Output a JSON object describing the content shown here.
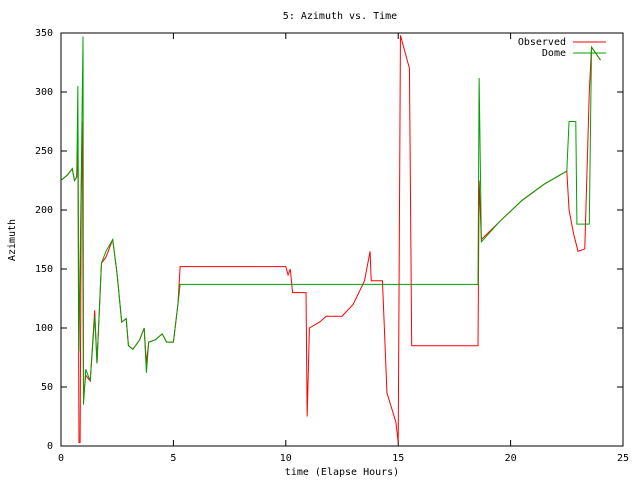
{
  "chart_data": {
    "type": "line",
    "title": "5: Azimuth vs. Time",
    "x_label": "time (Elapse Hours)",
    "y_label": "Azimuth",
    "xlim": [
      0,
      25
    ],
    "ylim": [
      0,
      350
    ],
    "xticks": [
      0,
      5,
      10,
      15,
      20,
      25
    ],
    "yticks": [
      0,
      50,
      100,
      150,
      200,
      250,
      300,
      350
    ],
    "grid": false,
    "legend": "top-right",
    "series": [
      {
        "name": "Observed",
        "color": "#ff0000",
        "x": [
          0,
          0.3,
          0.5,
          0.6,
          0.7,
          0.75,
          0.8,
          0.85,
          0.9,
          0.95,
          1.0,
          1.1,
          1.3,
          1.5,
          1.6,
          1.8,
          2.0,
          2.3,
          2.5,
          2.7,
          2.9,
          3.0,
          3.2,
          3.5,
          3.7,
          3.8,
          3.9,
          4.2,
          4.5,
          4.7,
          5.0,
          5.2,
          5.3,
          10.0,
          10.1,
          10.2,
          10.3,
          10.9,
          10.95,
          11.05,
          11.5,
          11.8,
          12.5,
          13.0,
          13.5,
          13.75,
          13.8,
          14.3,
          14.5,
          14.9,
          15.0,
          15.1,
          15.5,
          15.6,
          18.55,
          18.6,
          18.7,
          19.5,
          20.5,
          21.5,
          22.5,
          22.6,
          22.8,
          23.0,
          23.3,
          23.5,
          23.6,
          24.0
        ],
        "values": [
          225,
          230,
          235,
          225,
          228,
          258,
          3,
          3,
          210,
          275,
          40,
          60,
          55,
          115,
          70,
          155,
          160,
          175,
          145,
          105,
          108,
          85,
          82,
          90,
          100,
          70,
          88,
          90,
          95,
          88,
          88,
          120,
          152,
          152,
          145,
          150,
          130,
          130,
          25,
          100,
          105,
          110,
          110,
          120,
          140,
          165,
          140,
          140,
          45,
          20,
          3,
          348,
          320,
          85,
          85,
          225,
          175,
          190,
          208,
          222,
          233,
          200,
          180,
          165,
          167,
          300,
          338,
          327
        ]
      },
      {
        "name": "Dome",
        "color": "#00a000",
        "x": [
          0,
          0.3,
          0.5,
          0.6,
          0.7,
          0.75,
          0.8,
          0.98,
          1.0,
          1.1,
          1.3,
          1.5,
          1.6,
          1.8,
          2.0,
          2.3,
          2.5,
          2.7,
          2.9,
          3.0,
          3.2,
          3.5,
          3.7,
          3.8,
          3.9,
          4.2,
          4.5,
          4.7,
          5.0,
          5.2,
          5.3,
          18.55,
          18.6,
          18.7,
          19.5,
          20.5,
          21.5,
          22.5,
          22.6,
          22.9,
          22.95,
          23.5,
          23.6,
          24.0
        ],
        "values": [
          225,
          230,
          235,
          225,
          228,
          305,
          80,
          347,
          35,
          65,
          55,
          110,
          70,
          155,
          165,
          175,
          145,
          105,
          108,
          85,
          82,
          90,
          100,
          62,
          88,
          90,
          95,
          88,
          88,
          120,
          137,
          137,
          312,
          173,
          190,
          208,
          222,
          233,
          275,
          275,
          188,
          188,
          338,
          327
        ]
      }
    ]
  }
}
